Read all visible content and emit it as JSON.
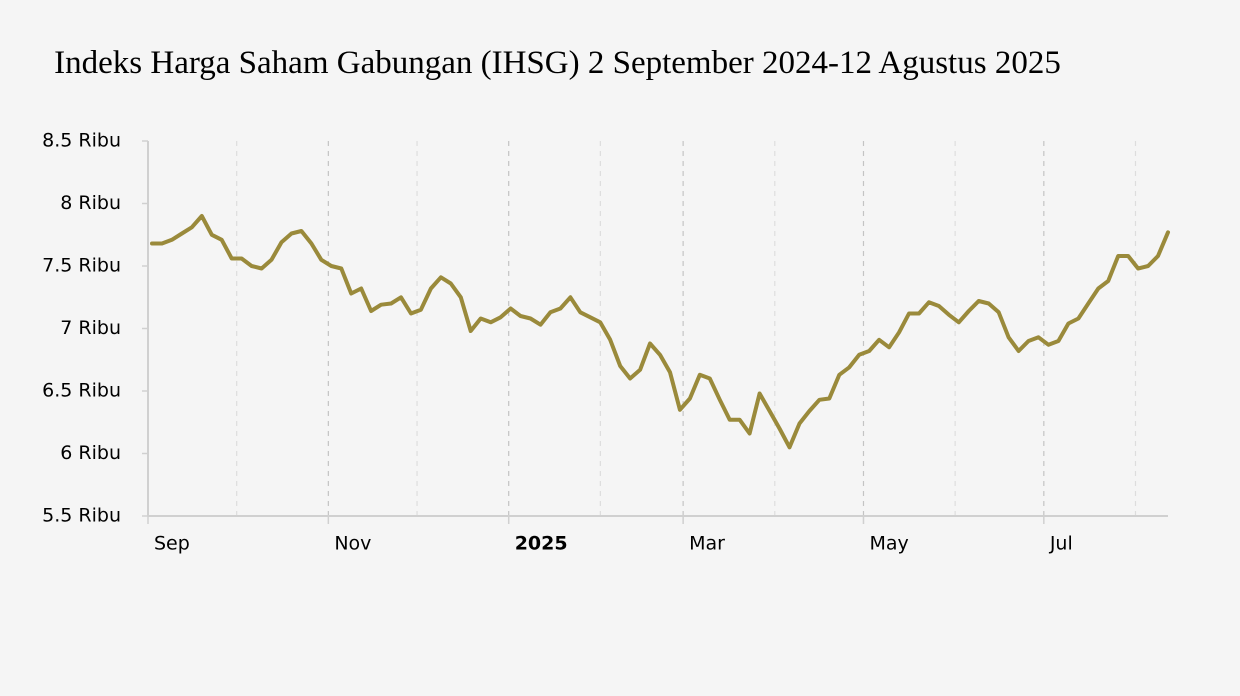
{
  "chart_data": {
    "type": "line",
    "title": "Indeks Harga Saham Gabungan (IHSG) 2 September 2024-12 Agustus 2025",
    "xlim": [
      "2024-09",
      "2025-08-12"
    ],
    "xticks": [
      {
        "value": "2024-09",
        "label": "Sep"
      },
      {
        "value": "2024-11",
        "label": "Nov"
      },
      {
        "value": "2025-01",
        "label": "2025"
      },
      {
        "value": "2025-03",
        "label": "Mar"
      },
      {
        "value": "2025-05",
        "label": "May"
      },
      {
        "value": "2025-07",
        "label": "Jul"
      }
    ],
    "xminor": [
      "2024-10",
      "2024-12",
      "2025-02",
      "2025-04",
      "2025-06",
      "2025-08"
    ],
    "ylim": [
      5.5,
      8.5
    ],
    "yticks": [
      {
        "value": 5.5,
        "label": "5.5 Ribu"
      },
      {
        "value": 6,
        "label": "6 Ribu"
      },
      {
        "value": 6.5,
        "label": "6.5 Ribu"
      },
      {
        "value": 7,
        "label": "7 Ribu"
      },
      {
        "value": 7.5,
        "label": "7.5 Ribu"
      },
      {
        "value": 8,
        "label": "8 Ribu"
      },
      {
        "value": 8.5,
        "label": "8.5 Ribu"
      }
    ],
    "grid": true,
    "series": [
      {
        "color": "#9a8a3b",
        "values": [
          7.68,
          7.68,
          7.71,
          7.76,
          7.81,
          7.9,
          7.75,
          7.71,
          7.56,
          7.56,
          7.5,
          7.48,
          7.55,
          7.69,
          7.76,
          7.78,
          7.68,
          7.55,
          7.5,
          7.48,
          7.28,
          7.32,
          7.14,
          7.19,
          7.2,
          7.25,
          7.12,
          7.15,
          7.32,
          7.41,
          7.36,
          7.25,
          6.98,
          7.08,
          7.05,
          7.09,
          7.16,
          7.1,
          7.08,
          7.03,
          7.13,
          7.16,
          7.25,
          7.13,
          7.09,
          7.05,
          6.91,
          6.7,
          6.6,
          6.67,
          6.88,
          6.79,
          6.65,
          6.35,
          6.44,
          6.63,
          6.6,
          6.43,
          6.27,
          6.27,
          6.16,
          6.48,
          6.34,
          6.2,
          6.05,
          6.24,
          6.34,
          6.43,
          6.44,
          6.63,
          6.69,
          6.79,
          6.82,
          6.91,
          6.85,
          6.97,
          7.12,
          7.12,
          7.21,
          7.18,
          7.11,
          7.05,
          7.14,
          7.22,
          7.2,
          7.13,
          6.93,
          6.82,
          6.9,
          6.93,
          6.87,
          6.9,
          7.04,
          7.08,
          7.2,
          7.32,
          7.38,
          7.58,
          7.58,
          7.48,
          7.5,
          7.58,
          7.77
        ]
      }
    ]
  }
}
